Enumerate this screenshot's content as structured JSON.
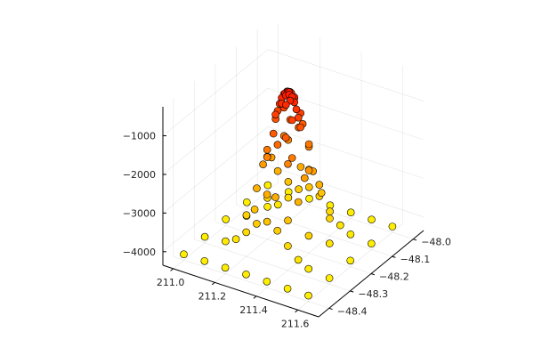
{
  "chart_data": {
    "type": "scatter",
    "title": "",
    "xlabel": "",
    "ylabel": "",
    "zlabel": "",
    "grid": true,
    "legend": "none",
    "colormap": [
      "#ffee00",
      "#ff9a00",
      "#ff1a00"
    ],
    "xlim": [
      210.95,
      211.7
    ],
    "ylim": [
      -48.45,
      -47.95
    ],
    "zlim": [
      -4350,
      -250
    ],
    "x_ticks": [
      {
        "value": 211.0,
        "label": "211.0"
      },
      {
        "value": 211.2,
        "label": "211.2"
      },
      {
        "value": 211.4,
        "label": "211.4"
      },
      {
        "value": 211.6,
        "label": "211.6"
      }
    ],
    "y_ticks": [
      {
        "value": -48.0,
        "label": "−48.0"
      },
      {
        "value": -48.1,
        "label": "−48.1"
      },
      {
        "value": -48.2,
        "label": "−48.2"
      },
      {
        "value": -48.3,
        "label": "−48.3"
      },
      {
        "value": -48.4,
        "label": "−48.4"
      }
    ],
    "z_ticks": [
      {
        "value": -1000,
        "label": "−1000"
      },
      {
        "value": -2000,
        "label": "−2000"
      },
      {
        "value": -3000,
        "label": "−3000"
      },
      {
        "value": -4000,
        "label": "−4000"
      }
    ],
    "surface": {
      "center_x": 211.3,
      "center_y": -48.2,
      "x_scale": 0.22,
      "y_scale": 0.15,
      "min_z": -4200,
      "peak_z": -350
    },
    "points_xy": [
      [
        211.0,
        -48.4
      ],
      [
        211.1,
        -48.4
      ],
      [
        211.2,
        -48.4
      ],
      [
        211.3,
        -48.4
      ],
      [
        211.4,
        -48.4
      ],
      [
        211.5,
        -48.4
      ],
      [
        211.6,
        -48.4
      ],
      [
        211.0,
        -48.3
      ],
      [
        211.1,
        -48.3
      ],
      [
        211.2,
        -48.3
      ],
      [
        211.3,
        -48.3
      ],
      [
        211.4,
        -48.3
      ],
      [
        211.5,
        -48.3
      ],
      [
        211.6,
        -48.3
      ],
      [
        211.0,
        -48.2
      ],
      [
        211.1,
        -48.2
      ],
      [
        211.2,
        -48.2
      ],
      [
        211.3,
        -48.2
      ],
      [
        211.4,
        -48.2
      ],
      [
        211.5,
        -48.2
      ],
      [
        211.6,
        -48.2
      ],
      [
        211.0,
        -48.1
      ],
      [
        211.1,
        -48.1
      ],
      [
        211.2,
        -48.1
      ],
      [
        211.3,
        -48.1
      ],
      [
        211.4,
        -48.1
      ],
      [
        211.5,
        -48.1
      ],
      [
        211.6,
        -48.1
      ],
      [
        211.0,
        -48.0
      ],
      [
        211.1,
        -48.0
      ],
      [
        211.2,
        -48.0
      ],
      [
        211.3,
        -48.0
      ],
      [
        211.4,
        -48.0
      ],
      [
        211.5,
        -48.0
      ],
      [
        211.6,
        -48.0
      ],
      [
        211.15,
        -48.3
      ],
      [
        211.25,
        -48.3
      ],
      [
        211.35,
        -48.3
      ],
      [
        211.45,
        -48.3
      ],
      [
        211.15,
        -48.25
      ],
      [
        211.25,
        -48.25
      ],
      [
        211.35,
        -48.25
      ],
      [
        211.45,
        -48.25
      ],
      [
        211.15,
        -48.15
      ],
      [
        211.25,
        -48.15
      ],
      [
        211.35,
        -48.15
      ],
      [
        211.45,
        -48.15
      ],
      [
        211.15,
        -48.1
      ],
      [
        211.25,
        -48.1
      ],
      [
        211.35,
        -48.1
      ],
      [
        211.45,
        -48.1
      ],
      [
        211.2,
        -48.25
      ],
      [
        211.3,
        -48.25
      ],
      [
        211.4,
        -48.25
      ],
      [
        211.2,
        -48.15
      ],
      [
        211.3,
        -48.15
      ],
      [
        211.4,
        -48.15
      ],
      [
        211.25,
        -48.2
      ],
      [
        211.35,
        -48.2
      ],
      [
        211.22,
        -48.28
      ],
      [
        211.28,
        -48.28
      ],
      [
        211.32,
        -48.28
      ],
      [
        211.38,
        -48.28
      ],
      [
        211.22,
        -48.12
      ],
      [
        211.28,
        -48.12
      ],
      [
        211.32,
        -48.12
      ],
      [
        211.38,
        -48.12
      ],
      [
        211.2,
        -48.22
      ],
      [
        211.2,
        -48.18
      ],
      [
        211.4,
        -48.22
      ],
      [
        211.4,
        -48.18
      ],
      [
        211.24,
        -48.24
      ],
      [
        211.27,
        -48.24
      ],
      [
        211.33,
        -48.24
      ],
      [
        211.36,
        -48.24
      ],
      [
        211.24,
        -48.16
      ],
      [
        211.27,
        -48.16
      ],
      [
        211.33,
        -48.16
      ],
      [
        211.36,
        -48.16
      ],
      [
        211.24,
        -48.2
      ],
      [
        211.27,
        -48.2
      ],
      [
        211.33,
        -48.2
      ],
      [
        211.36,
        -48.2
      ],
      [
        211.26,
        -48.22
      ],
      [
        211.29,
        -48.22
      ],
      [
        211.31,
        -48.22
      ],
      [
        211.34,
        -48.22
      ],
      [
        211.26,
        -48.18
      ],
      [
        211.29,
        -48.18
      ],
      [
        211.31,
        -48.18
      ],
      [
        211.34,
        -48.18
      ],
      [
        211.26,
        -48.2
      ],
      [
        211.28,
        -48.2
      ],
      [
        211.32,
        -48.2
      ],
      [
        211.34,
        -48.2
      ],
      [
        211.28,
        -48.21
      ],
      [
        211.3,
        -48.21
      ],
      [
        211.32,
        -48.21
      ],
      [
        211.28,
        -48.19
      ],
      [
        211.3,
        -48.19
      ],
      [
        211.32,
        -48.19
      ],
      [
        211.29,
        -48.205
      ],
      [
        211.31,
        -48.205
      ],
      [
        211.29,
        -48.195
      ],
      [
        211.31,
        -48.195
      ],
      [
        211.295,
        -48.2
      ],
      [
        211.305,
        -48.2
      ],
      [
        211.3,
        -48.2
      ]
    ]
  }
}
